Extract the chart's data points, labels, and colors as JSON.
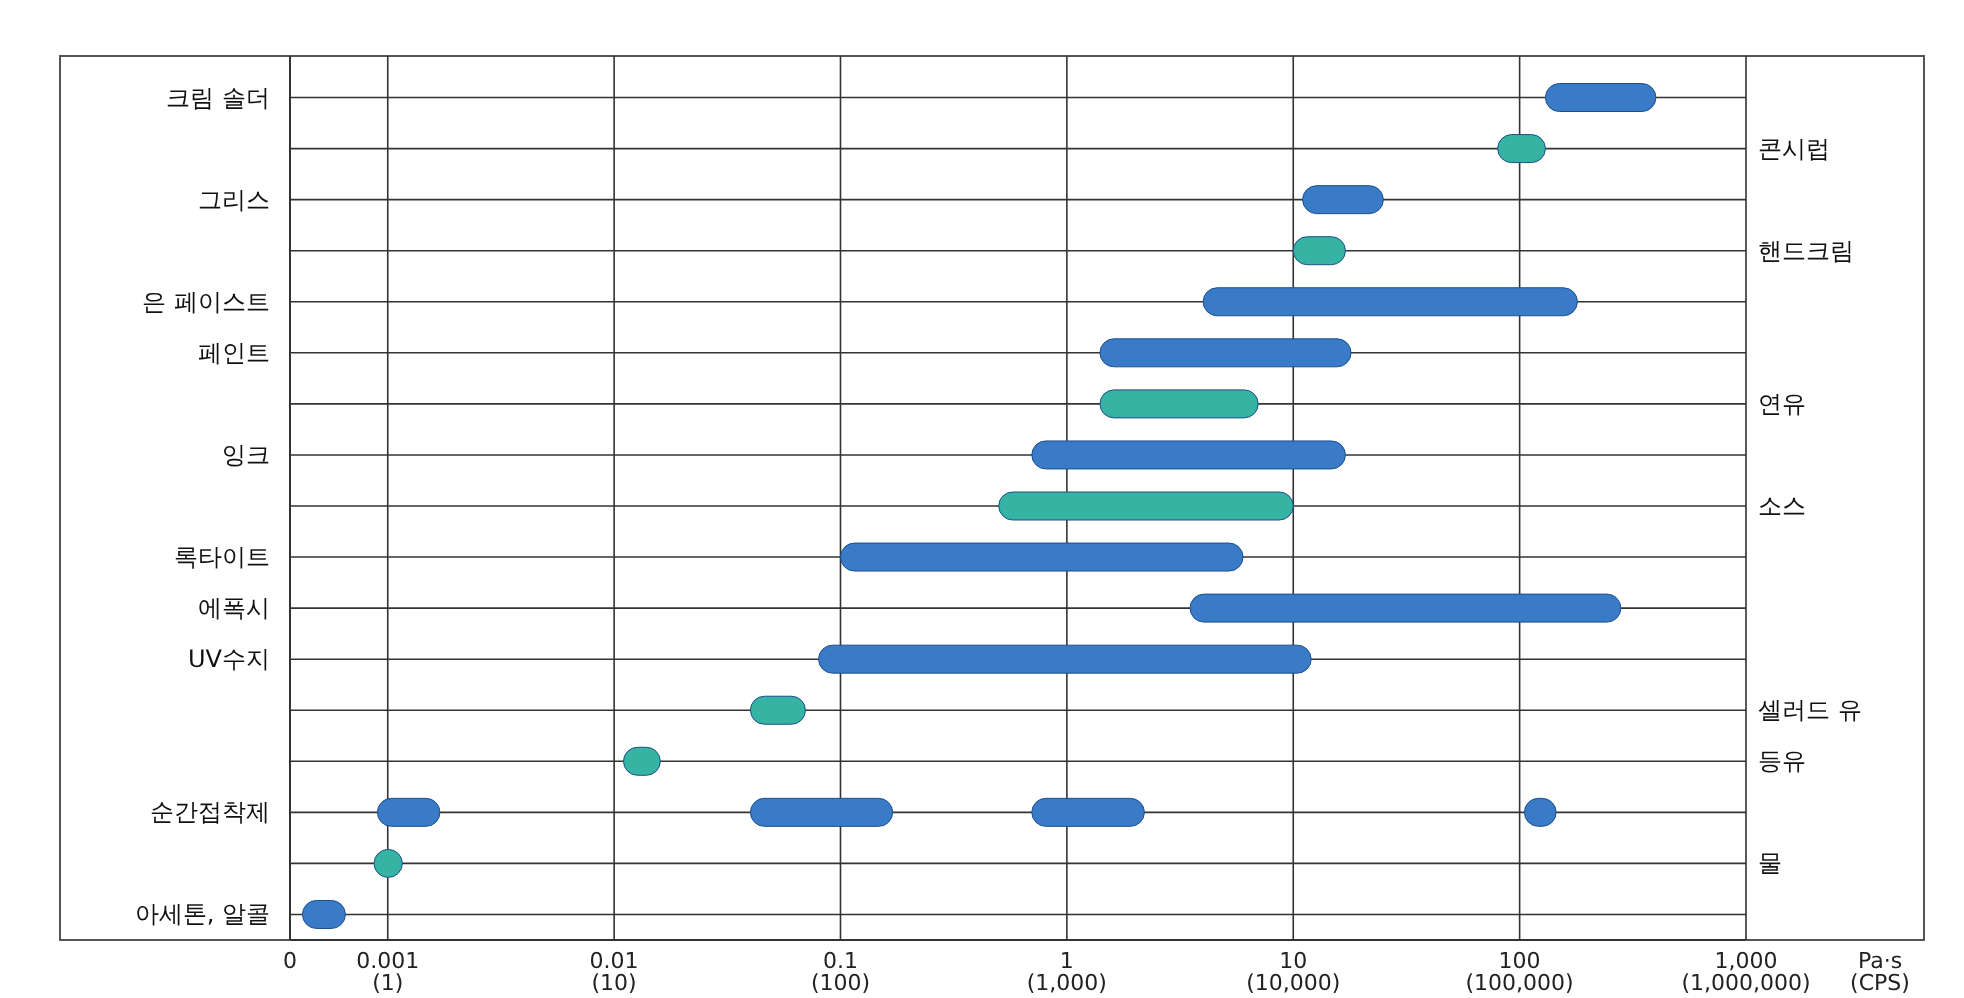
{
  "chart_data": {
    "type": "bar",
    "orientation": "horizontal",
    "log": "x",
    "categories": [
      "크림 솔더",
      null,
      "그리스",
      null,
      "은 페이스트",
      "페인트",
      null,
      "잉크",
      null,
      "록타이트",
      "에폭시",
      "UV수지",
      null,
      null,
      "순간접착제",
      null,
      "아세톤, 알콜"
    ],
    "y2_categories": [
      null,
      "콘시럽",
      null,
      "핸드크림",
      null,
      null,
      "연유",
      null,
      "소스",
      null,
      null,
      null,
      "셀러드 유",
      "등유",
      null,
      "물",
      null
    ],
    "series": [
      {
        "color": "#3a7bc8",
        "base": [
          130,
          null,
          11,
          null,
          4,
          1.4,
          null,
          0.7,
          null,
          0.1,
          3.5,
          0.08,
          null,
          null,
          0.0009,
          null,
          0.00042
        ],
        "values": [
          270,
          null,
          14,
          null,
          176,
          16.6,
          null,
          16.3,
          null,
          5.9,
          276.5,
          11.92,
          null,
          null,
          0.0008,
          null,
          0.00023
        ]
      },
      {
        "color": "#35b3a3",
        "base": [
          null,
          80,
          null,
          10,
          null,
          null,
          1.4,
          null,
          0.5,
          null,
          null,
          null,
          0.04,
          0.011,
          null,
          0.00087,
          null
        ],
        "values": [
          null,
          50,
          null,
          7,
          null,
          null,
          5.6,
          null,
          9.5,
          null,
          null,
          null,
          0.03,
          0.005,
          null,
          0.00029,
          null
        ]
      },
      {
        "color": "#3a7bc8",
        "base": [
          null,
          null,
          null,
          null,
          null,
          null,
          null,
          null,
          null,
          null,
          null,
          null,
          null,
          null,
          0.04,
          null,
          null
        ],
        "values": [
          null,
          null,
          null,
          null,
          null,
          null,
          null,
          null,
          null,
          null,
          null,
          null,
          null,
          null,
          0.13,
          null,
          null
        ]
      },
      {
        "color": "#3a7bc8",
        "base": [
          null,
          null,
          null,
          null,
          null,
          null,
          null,
          null,
          null,
          null,
          null,
          null,
          null,
          null,
          0.7,
          null,
          null
        ],
        "values": [
          null,
          null,
          null,
          null,
          null,
          null,
          null,
          null,
          null,
          null,
          null,
          null,
          null,
          null,
          1.5,
          null,
          null
        ]
      },
      {
        "color": "#3a7bc8",
        "base": [
          null,
          null,
          null,
          null,
          null,
          null,
          null,
          null,
          null,
          null,
          null,
          null,
          null,
          null,
          105,
          null,
          null
        ],
        "values": [
          null,
          null,
          null,
          null,
          null,
          null,
          null,
          null,
          null,
          null,
          null,
          null,
          null,
          null,
          40,
          null,
          null
        ]
      }
    ],
    "xlim": [
      0.00037,
      1000
    ],
    "xticks": [
      {
        "value": 0.00037,
        "label": "0"
      },
      0.001,
      0.01,
      0.1,
      1,
      10,
      100,
      {
        "value": 1000,
        "label": "1,000"
      }
    ],
    "xlabel": "Pa·s",
    "annotations": [
      "(1)",
      "(10)",
      "(100)",
      "(1,000)",
      "(10,000)",
      "(100,000)",
      "(1,000,000)",
      "(CPS)"
    ],
    "grid": true
  }
}
